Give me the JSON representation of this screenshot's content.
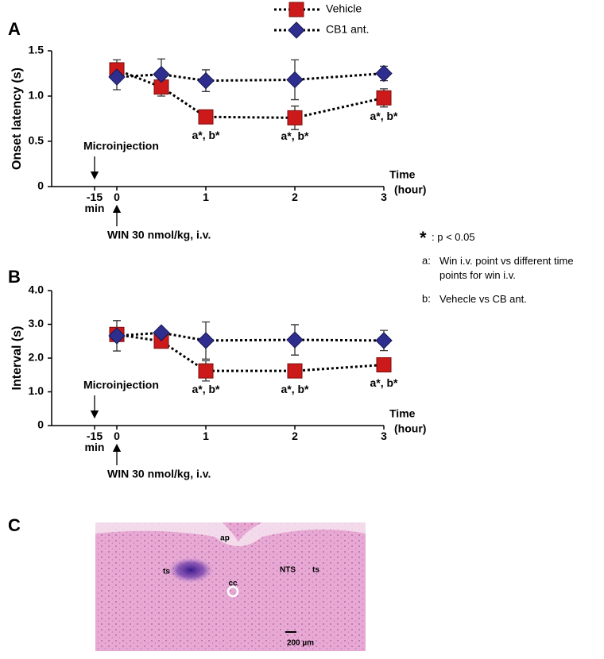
{
  "chart_data": [
    {
      "type": "line",
      "panel": "A",
      "ylabel": "Onset latency (s)",
      "xlabel": "Time",
      "xlabel_unit": "(hour)",
      "annotations": [
        "Microinjection",
        "WIN 30 nmol/kg, i.v."
      ],
      "x": [
        0,
        0.5,
        1,
        2,
        3
      ],
      "xlim": [
        -0.75,
        3
      ],
      "xticks": [
        {
          "value": -0.25,
          "label": "-15 min"
        },
        0,
        1,
        2,
        3
      ],
      "ylim": [
        0,
        1.5
      ],
      "yticks": [
        0,
        0.5,
        {
          "value": 1,
          "label": "1.0"
        },
        1.5
      ],
      "series": [
        {
          "name": "Vehicle",
          "color": "#cc1a1a",
          "marker": "square",
          "values": [
            1.29,
            1.1,
            0.77,
            0.76,
            0.98
          ],
          "errors": [
            0.11,
            0.1,
            0.07,
            0.13,
            0.1
          ],
          "point_labels": [
            null,
            null,
            "a*, b*",
            "a*, b*",
            "a*, b*"
          ]
        },
        {
          "name": "CB1 ant.",
          "color": "#2e2e8f",
          "marker": "diamond",
          "values": [
            1.21,
            1.24,
            1.17,
            1.18,
            1.25
          ],
          "errors": [
            0.14,
            0.17,
            0.12,
            0.22,
            0.08
          ]
        }
      ]
    },
    {
      "type": "line",
      "panel": "B",
      "ylabel": "Interval (s)",
      "xlabel": "Time",
      "xlabel_unit": "(hour)",
      "annotations": [
        "Microinjection",
        "WIN 30 nmol/kg, i.v."
      ],
      "x": [
        0,
        0.5,
        1,
        2,
        3
      ],
      "xlim": [
        -0.75,
        3
      ],
      "xticks": [
        {
          "value": -0.25,
          "label": "-15 min"
        },
        0,
        1,
        2,
        3
      ],
      "ylim": [
        0,
        4
      ],
      "yticks": [
        0,
        {
          "value": 1,
          "label": "1.0"
        },
        {
          "value": 2,
          "label": "2.0"
        },
        {
          "value": 3,
          "label": "3.0"
        },
        {
          "value": 4,
          "label": "4.0"
        }
      ],
      "series": [
        {
          "color": "#cc1a1a",
          "marker": "square",
          "values": [
            2.7,
            2.5,
            1.62,
            1.62,
            1.8
          ],
          "errors": [
            0.2,
            0.15,
            0.3,
            0.2,
            0.1
          ],
          "point_labels": [
            null,
            null,
            "a*, b*",
            "a*, b*",
            "a*, b*"
          ]
        },
        {
          "color": "#2e2e8f",
          "marker": "diamond",
          "values": [
            2.66,
            2.75,
            2.52,
            2.54,
            2.52
          ],
          "errors": [
            0.45,
            0.1,
            0.55,
            0.45,
            0.3
          ]
        }
      ]
    }
  ],
  "notes": [
    {
      "symbol": "*",
      "text": ": p < 0.05"
    },
    {
      "symbol": "a:",
      "text": "Win i.v. point vs different time points for win i.v."
    },
    {
      "symbol": "b:",
      "text": "Vehecle vs CB ant."
    }
  ],
  "image_panel": {
    "panel": "C",
    "labels": [
      "ap",
      "ts",
      "NTS",
      "ts",
      "cc"
    ],
    "scale_bar": "200 µm"
  }
}
